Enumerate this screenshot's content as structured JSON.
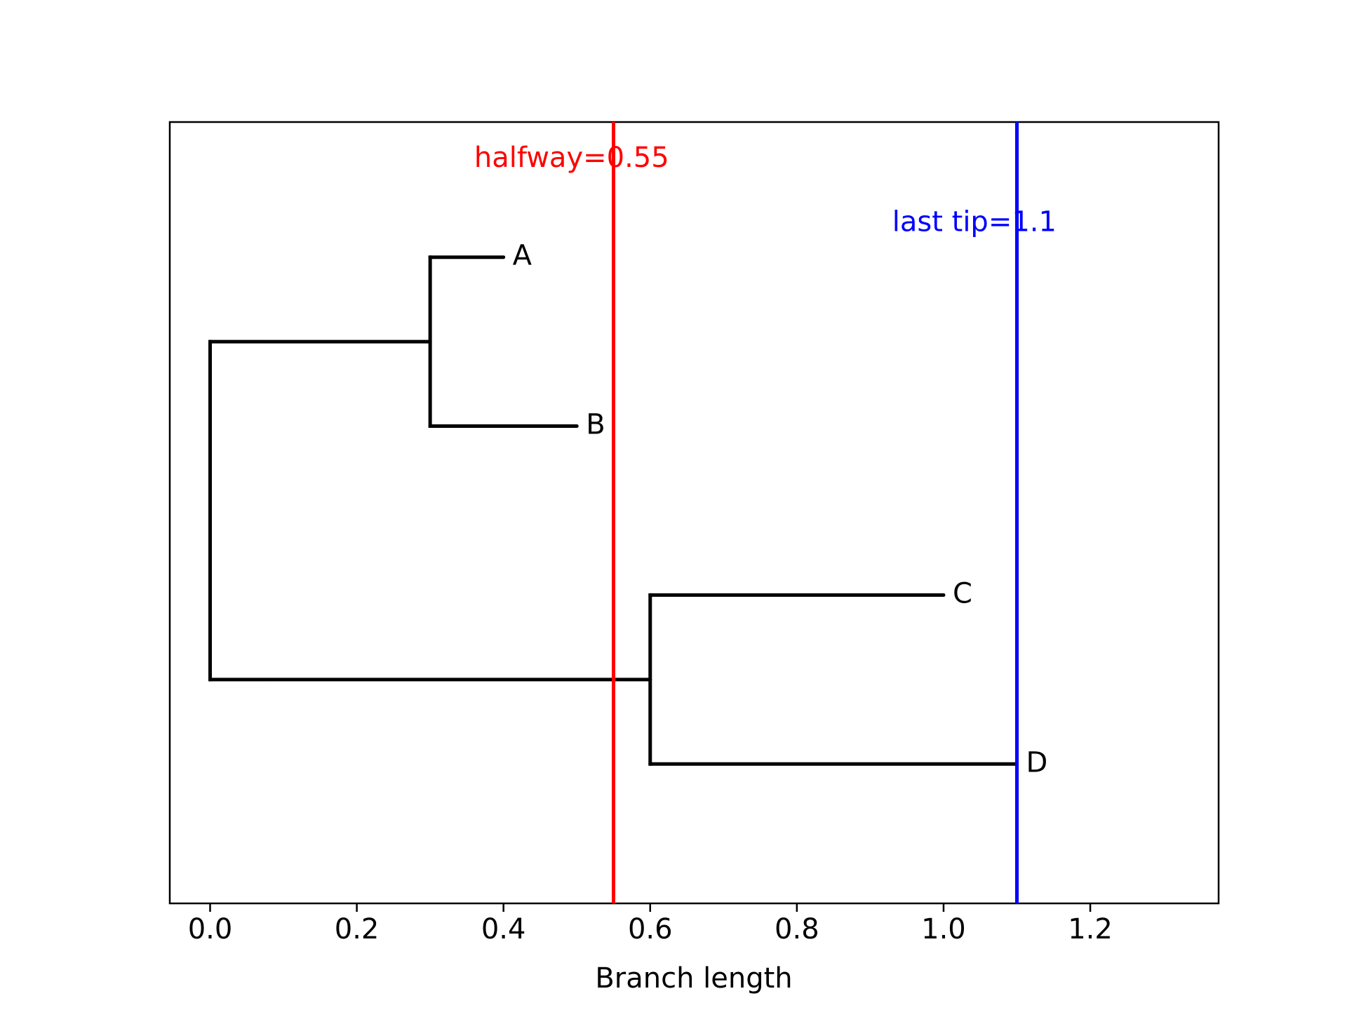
{
  "chart_data": {
    "type": "tree",
    "xlabel": "Branch length",
    "ylabel": "",
    "title": "",
    "xlim": [
      -0.055,
      1.375
    ],
    "ylim": [
      0.375,
      5.0
    ],
    "xticks": [
      0.0,
      0.2,
      0.4,
      0.6,
      0.8,
      1.0,
      1.2
    ],
    "xtick_labels": [
      "0.0",
      "0.2",
      "0.4",
      "0.6",
      "0.8",
      "1.0",
      "1.2"
    ],
    "grid": false,
    "tips": [
      {
        "name": "A",
        "x": 0.4,
        "y": 4.2
      },
      {
        "name": "B",
        "x": 0.5,
        "y": 3.2
      },
      {
        "name": "C",
        "x": 1.0,
        "y": 2.2
      },
      {
        "name": "D",
        "x": 1.1,
        "y": 1.2
      }
    ],
    "branches": [
      {
        "x0": 0.0,
        "x1": 0.3,
        "y": 3.7
      },
      {
        "x0": 0.3,
        "x1": 0.4,
        "y": 4.2
      },
      {
        "x0": 0.3,
        "x1": 0.5,
        "y": 3.2
      },
      {
        "x0": 0.0,
        "x1": 0.6,
        "y": 1.7
      },
      {
        "x0": 0.6,
        "x1": 1.0,
        "y": 2.2
      },
      {
        "x0": 0.6,
        "x1": 1.1,
        "y": 1.2
      }
    ],
    "connectors": [
      {
        "x": 0.0,
        "y0": 1.7,
        "y1": 3.7
      },
      {
        "x": 0.3,
        "y0": 3.2,
        "y1": 4.2
      },
      {
        "x": 0.6,
        "y0": 1.2,
        "y1": 2.2
      }
    ],
    "reference_lines": [
      {
        "x": 0.55,
        "label": "halfway=0.55",
        "color": "#ff0000",
        "label_x": 0.36,
        "label_y": 4.78
      },
      {
        "x": 1.1,
        "label": "last tip=1.1",
        "color": "#0000ff",
        "label_x": 0.93,
        "label_y": 4.4
      }
    ],
    "colors": {
      "tree": "#000000",
      "axes": "#000000",
      "text": "#000000"
    }
  }
}
